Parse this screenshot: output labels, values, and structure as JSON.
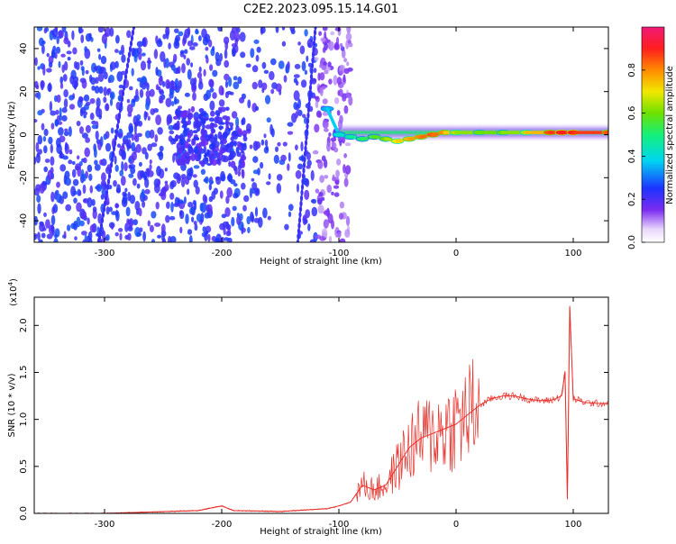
{
  "figure": {
    "title": "C2E2.2023.095.15.14.G01"
  },
  "chart_data": [
    {
      "type": "heatmap",
      "xlabel": "Height of straight line (km)",
      "ylabel": "Frequency (Hz)",
      "xlim": [
        -360,
        130
      ],
      "ylim": [
        -50,
        50
      ],
      "xticks": [
        -300,
        -200,
        -100,
        0,
        100
      ],
      "yticks": [
        -40,
        -20,
        0,
        20,
        40
      ],
      "colorbar": {
        "label": "Normalized spectral amplitude",
        "range": [
          0.0,
          1.0
        ],
        "ticks": [
          0.0,
          0.2,
          0.4,
          0.6,
          0.8
        ]
      },
      "signal_trace": {
        "x": [
          -110,
          -100,
          -90,
          -80,
          -70,
          -60,
          -50,
          -40,
          -30,
          -20,
          -10,
          0,
          20,
          40,
          60,
          80,
          90,
          100,
          130
        ],
        "frequency": [
          12,
          0,
          -1,
          -2,
          -1,
          -2,
          -3,
          -2,
          -1,
          0,
          1,
          1,
          1,
          1,
          1,
          1,
          1,
          1,
          1
        ],
        "amplitude": [
          0.35,
          0.4,
          0.45,
          0.5,
          0.55,
          0.6,
          0.7,
          0.75,
          0.8,
          0.85,
          0.8,
          0.65,
          0.6,
          0.6,
          0.65,
          0.85,
          0.9,
          0.9,
          0.85
        ]
      }
    },
    {
      "type": "line",
      "xlabel": "Height of straight line (km)",
      "ylabel": "SNR (10 * v/v)",
      "yscale_label": "(x10",
      "yscale_exp": "4",
      "xlim": [
        -360,
        130
      ],
      "ylim": [
        0.0,
        2.3
      ],
      "xticks": [
        -300,
        -200,
        -100,
        0,
        100
      ],
      "yticks": [
        0.0,
        0.5,
        1.0,
        1.5,
        2.0
      ],
      "series": [
        {
          "color": "#e8302a",
          "x": [
            -360,
            -300,
            -220,
            -200,
            -190,
            -150,
            -110,
            -100,
            -90,
            -80,
            -70,
            -60,
            -50,
            -40,
            -30,
            -20,
            -10,
            0,
            10,
            20,
            30,
            40,
            50,
            60,
            70,
            80,
            85,
            90,
            93,
            95,
            97,
            100,
            110,
            120,
            130
          ],
          "y": [
            0.0,
            0.0,
            0.03,
            0.08,
            0.03,
            0.02,
            0.05,
            0.08,
            0.12,
            0.3,
            0.25,
            0.3,
            0.5,
            0.7,
            0.8,
            0.85,
            0.9,
            0.95,
            1.05,
            1.15,
            1.22,
            1.25,
            1.25,
            1.22,
            1.2,
            1.2,
            1.22,
            1.25,
            1.5,
            0.15,
            2.2,
            1.22,
            1.18,
            1.17,
            1.17
          ]
        }
      ]
    }
  ],
  "colors": {
    "axis": "#000000",
    "snr_line": "#e8302a"
  }
}
